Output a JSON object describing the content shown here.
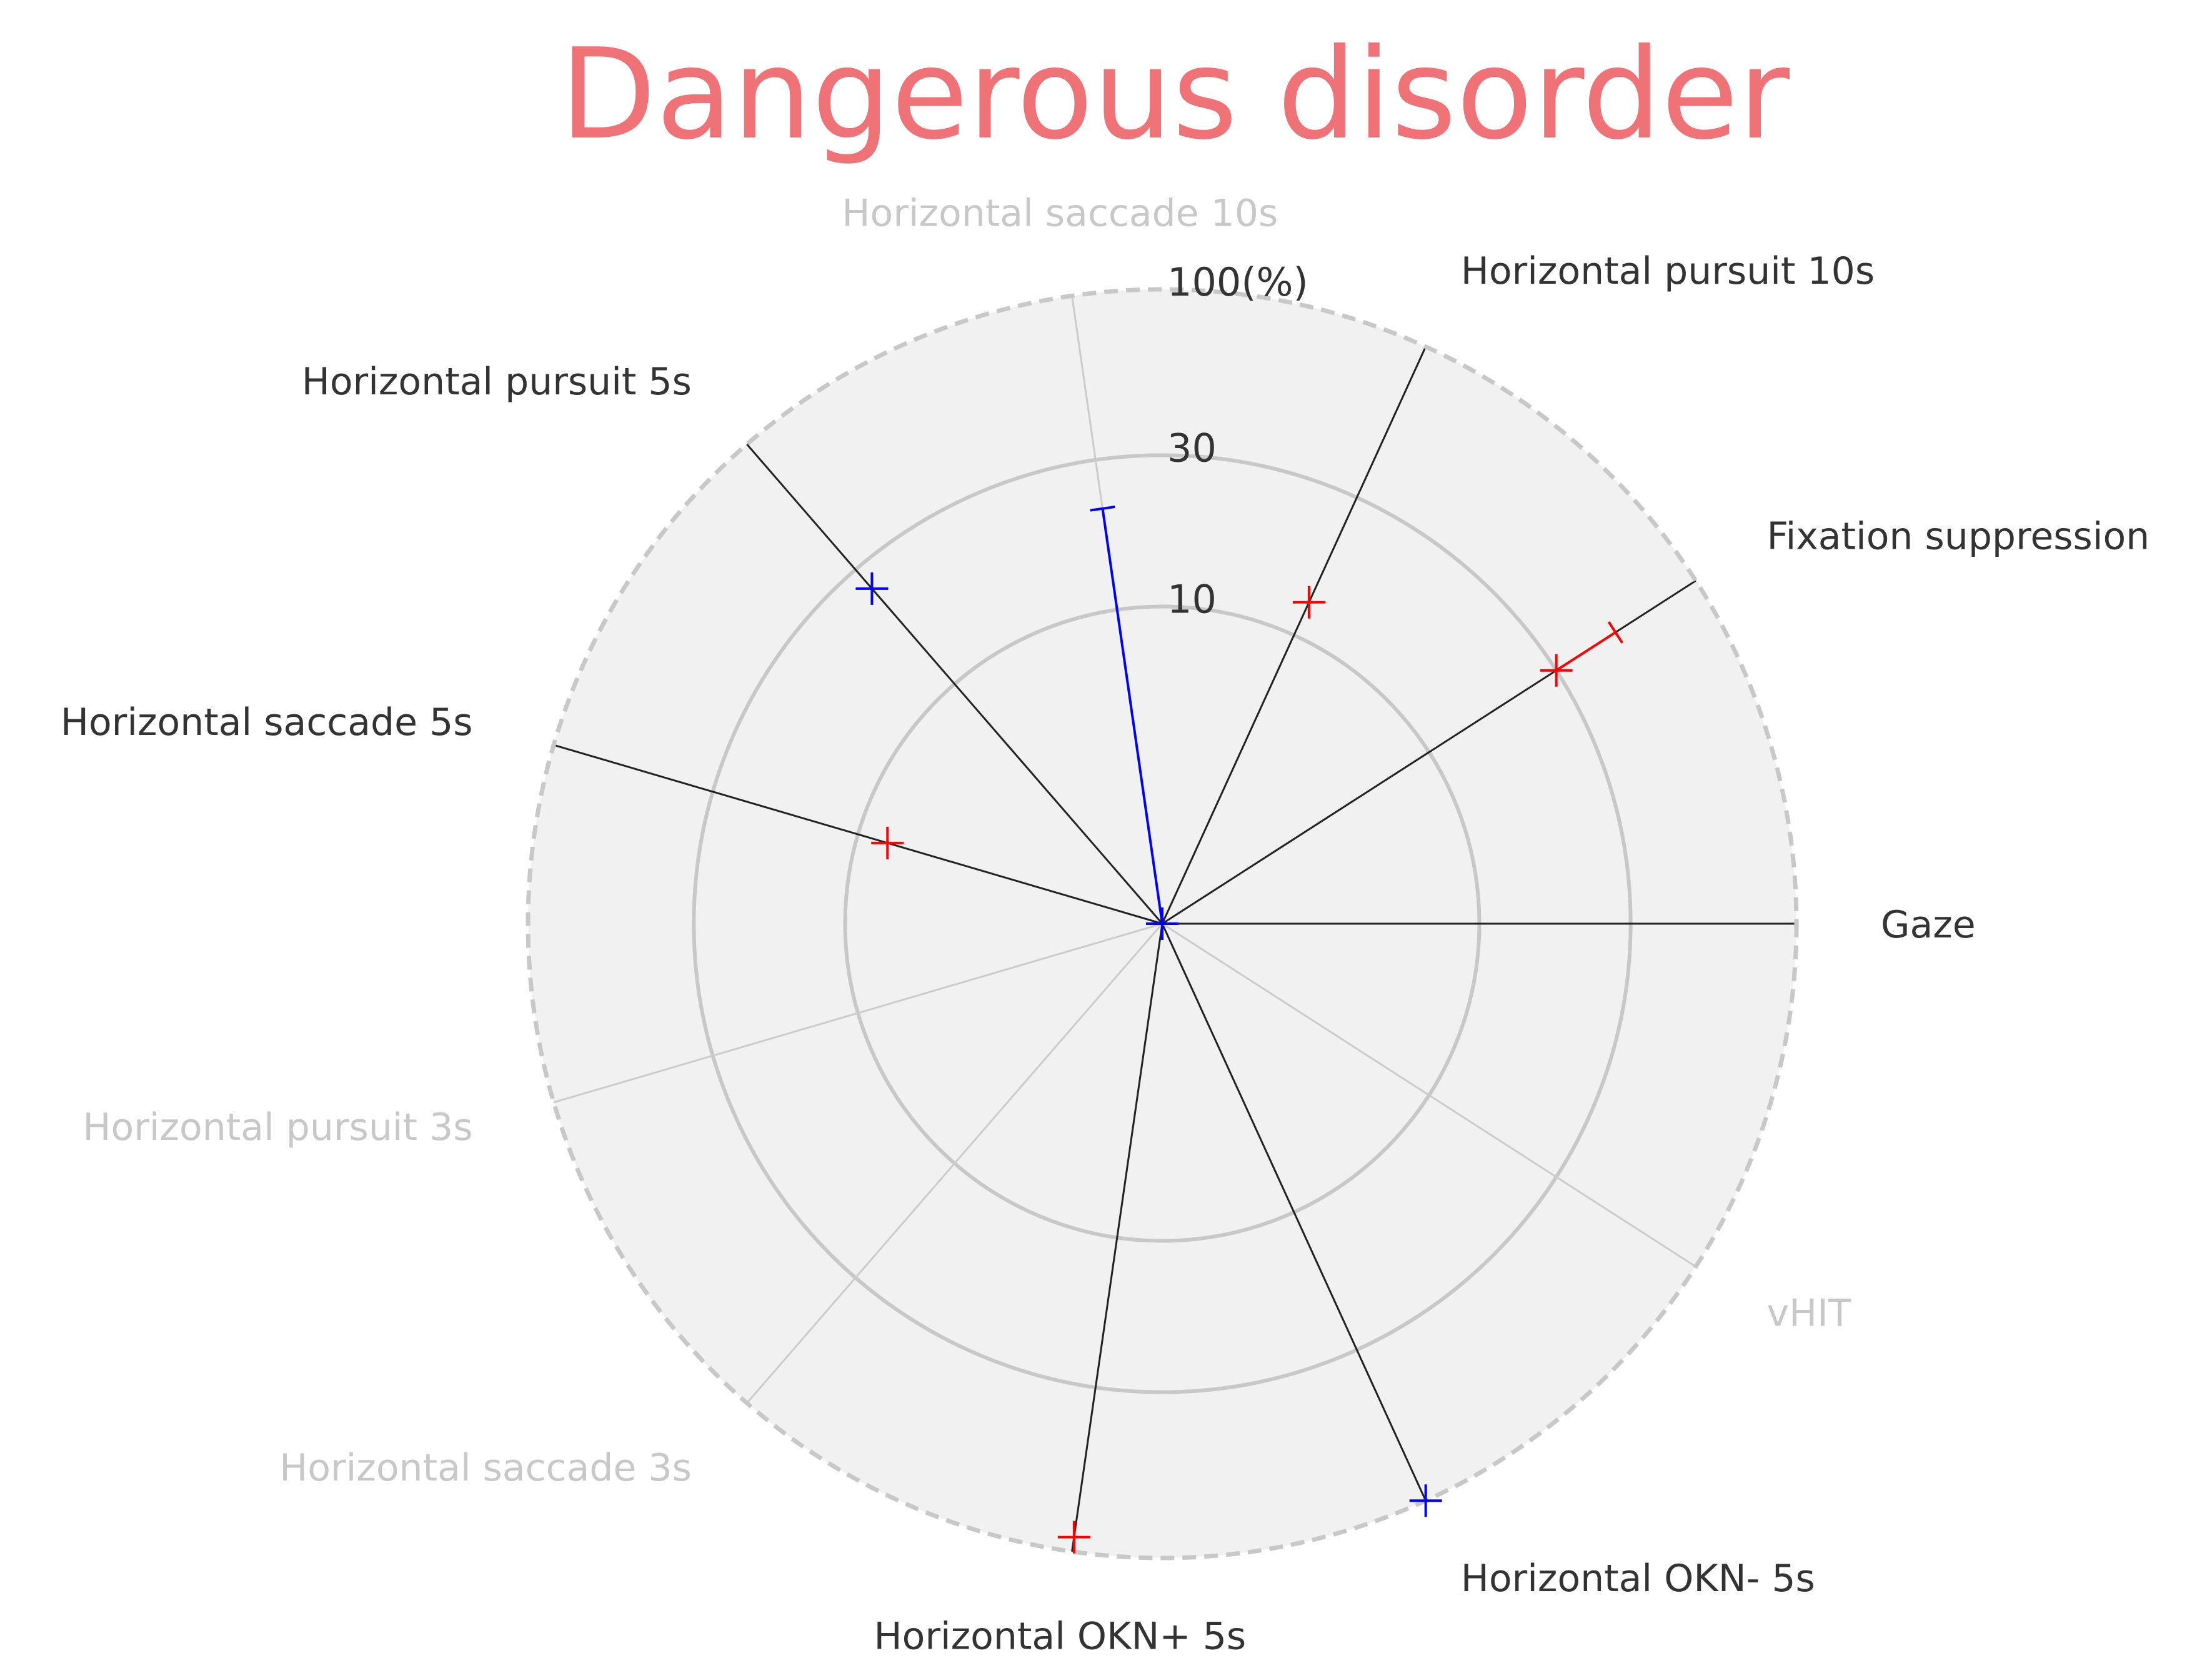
{
  "chart_data": {
    "type": "radar",
    "title": "Dangerous disorder",
    "title_color": "#ee7276",
    "radial_scale": "log",
    "ring_labels": [
      "10",
      "30",
      "100(%)"
    ],
    "ring_values": [
      10,
      30,
      100
    ],
    "axes": [
      {
        "label": "Gaze",
        "active": true
      },
      {
        "label": "Fixation suppression",
        "active": true
      },
      {
        "label": "Horizontal pursuit 10s",
        "active": true
      },
      {
        "label": "Horizontal saccade 10s",
        "active": false
      },
      {
        "label": "Horizontal pursuit 5s",
        "active": true
      },
      {
        "label": "Horizontal saccade 5s",
        "active": true
      },
      {
        "label": "Horizontal pursuit 3s",
        "active": false
      },
      {
        "label": "Horizontal saccade 3s",
        "active": false
      },
      {
        "label": "Horizontal OKN+ 5s",
        "active": true
      },
      {
        "label": "Horizontal OKN- 5s",
        "active": true
      },
      {
        "label": "vHIT",
        "active": false
      }
    ],
    "series": [
      {
        "color": "#ff0000",
        "points": [
          {
            "axis": "Fixation suppression",
            "value": 30,
            "upper": 50
          },
          {
            "axis": "Horizontal pursuit 10s",
            "value": 13
          },
          {
            "axis": "Horizontal saccade 5s",
            "value": 8
          },
          {
            "axis": "Horizontal OKN+ 5s",
            "value": 90
          }
        ]
      },
      {
        "color": "#0000ff",
        "points": [
          {
            "axis": "Horizontal pursuit 5s",
            "value": 25
          },
          {
            "axis": "Horizontal OKN- 5s",
            "value": 100
          },
          {
            "axis": "Horizontal saccade 10s",
            "value": 1,
            "upper": 21
          }
        ]
      }
    ],
    "colors": {
      "background_fill": "#f1f1f1",
      "ring": "#c8c8c8",
      "active_spoke": "#222222",
      "inactive_spoke": "#cccccc",
      "active_label": "#333333",
      "inactive_label": "#c8c8c8"
    }
  }
}
